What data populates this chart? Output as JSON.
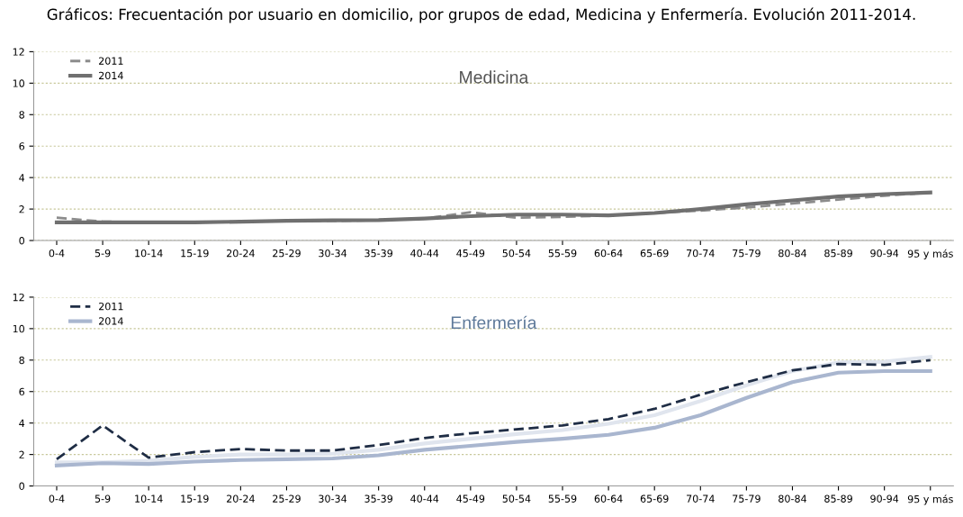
{
  "chart_data": [
    {
      "type": "line",
      "title": "Medicina",
      "annotations": [
        "Gráficos: Frecuentación por usuario en domicilio, por grupos de edad, Medicina y Enfermería. Evolución 2011-2014."
      ],
      "categories": [
        "0-4",
        "5-9",
        "10-14",
        "15-19",
        "20-24",
        "25-29",
        "30-34",
        "35-39",
        "40-44",
        "45-49",
        "50-54",
        "55-59",
        "60-64",
        "65-69",
        "70-74",
        "75-79",
        "80-84",
        "85-89",
        "90-94",
        "95 y más"
      ],
      "series": [
        {
          "name": "2011",
          "color": "#8c8c8c",
          "line_style": "dashed",
          "values": [
            1.45,
            1.2,
            1.15,
            1.15,
            1.2,
            1.25,
            1.25,
            1.3,
            1.4,
            1.8,
            1.45,
            1.5,
            1.6,
            1.75,
            1.9,
            2.1,
            2.35,
            2.6,
            2.85,
            3.05
          ]
        },
        {
          "name": "2014",
          "color": "#707070",
          "line_style": "solid",
          "values": [
            1.15,
            1.15,
            1.15,
            1.15,
            1.2,
            1.25,
            1.28,
            1.3,
            1.4,
            1.55,
            1.65,
            1.65,
            1.6,
            1.75,
            2.0,
            2.3,
            2.55,
            2.8,
            2.95,
            3.05
          ]
        }
      ],
      "ylim": [
        0,
        12
      ],
      "yticks": [
        0,
        2,
        4,
        6,
        8,
        10,
        12
      ],
      "grid": "y",
      "legend": "top left"
    },
    {
      "type": "line",
      "title": "Enfermería",
      "categories": [
        "0-4",
        "5-9",
        "10-14",
        "15-19",
        "20-24",
        "25-29",
        "30-34",
        "35-39",
        "40-44",
        "45-49",
        "50-54",
        "55-59",
        "60-64",
        "65-69",
        "70-74",
        "75-79",
        "80-84",
        "85-89",
        "90-94",
        "95 y más"
      ],
      "series": [
        {
          "color": "#e0e5ee",
          "line_style": "solid",
          "values": [
            1.5,
            1.5,
            1.6,
            1.85,
            2.0,
            2.0,
            2.05,
            2.3,
            2.7,
            3.0,
            3.3,
            3.55,
            3.95,
            4.5,
            5.4,
            6.4,
            7.3,
            7.85,
            7.9,
            8.2
          ]
        },
        {
          "name": "2011",
          "color": "#1f2d45",
          "line_style": "dashed",
          "values": [
            1.7,
            3.85,
            1.8,
            2.15,
            2.35,
            2.25,
            2.25,
            2.6,
            3.05,
            3.35,
            3.6,
            3.85,
            4.25,
            4.9,
            5.8,
            6.6,
            7.35,
            7.75,
            7.7,
            8.0
          ]
        },
        {
          "name": "2014",
          "color": "#a9b6cf",
          "line_style": "solid",
          "values": [
            1.3,
            1.45,
            1.4,
            1.55,
            1.65,
            1.7,
            1.75,
            1.95,
            2.3,
            2.55,
            2.8,
            3.0,
            3.25,
            3.7,
            4.5,
            5.6,
            6.6,
            7.2,
            7.3,
            7.3
          ]
        }
      ],
      "ylim": [
        0,
        12
      ],
      "yticks": [
        0,
        2,
        4,
        6,
        8,
        10,
        12
      ],
      "grid": "y",
      "legend": "top left"
    }
  ]
}
